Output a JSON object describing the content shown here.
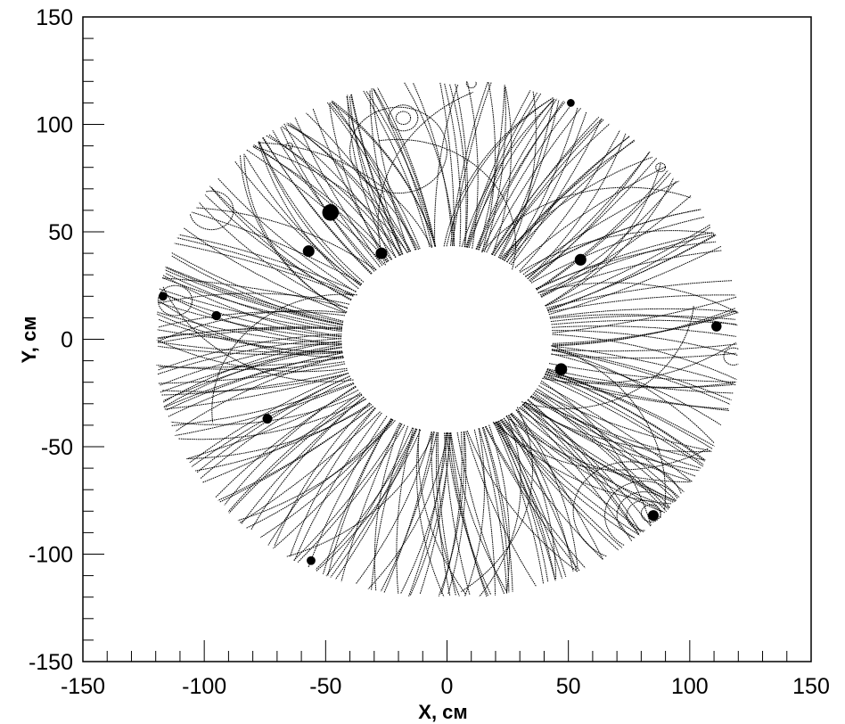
{
  "chart_data": {
    "type": "scatter",
    "title": "",
    "xlabel": "X, см",
    "ylabel": "Y, см",
    "xlim": [
      -150,
      150
    ],
    "ylim": [
      -150,
      150
    ],
    "x_major_ticks": [
      -150,
      -100,
      -50,
      0,
      50,
      100,
      150
    ],
    "y_major_ticks": [
      -150,
      -100,
      -50,
      0,
      50,
      100,
      150
    ],
    "x_tick_labels": [
      "-150",
      "-100",
      "-50",
      "0",
      "50",
      "100",
      "150"
    ],
    "y_tick_labels": [
      "-150",
      "-100",
      "-50",
      "0",
      "50",
      "100",
      "150"
    ],
    "grid": false,
    "legend": "none",
    "track_color": "#000000",
    "description": "track hits in a transverse detector plane",
    "region": {
      "inner_radius_cm": 42,
      "outer_radius_cm": 121,
      "outer_flat_limit_cm": 120
    },
    "blobs": [
      {
        "x": -57,
        "y": 41,
        "r": 2.4
      },
      {
        "x": -48,
        "y": 59,
        "r": 3.4
      },
      {
        "x": -27,
        "y": 40,
        "r": 2.4
      },
      {
        "x": -95,
        "y": 11,
        "r": 1.9
      },
      {
        "x": -74,
        "y": -37,
        "r": 2.0
      },
      {
        "x": -56,
        "y": -103,
        "r": 1.8
      },
      {
        "x": 55,
        "y": 37,
        "r": 2.4
      },
      {
        "x": 47,
        "y": -14,
        "r": 2.5
      },
      {
        "x": 111,
        "y": 6,
        "r": 2.1
      },
      {
        "x": 51,
        "y": 110,
        "r": 1.6
      },
      {
        "x": 85,
        "y": -82,
        "r": 2.2
      },
      {
        "x": -117,
        "y": 20,
        "r": 1.8
      }
    ],
    "loops": [
      {
        "cx": 81,
        "cy": -82,
        "r": 16
      },
      {
        "cx": 81,
        "cy": -82,
        "r": 11
      },
      {
        "cx": 81,
        "cy": -82,
        "r": 7
      },
      {
        "cx": 84,
        "cy": -81,
        "r": 4
      },
      {
        "cx": 75,
        "cy": -80,
        "r": 23
      },
      {
        "cx": -18,
        "cy": 103,
        "r": 6
      },
      {
        "cx": -18,
        "cy": 103,
        "r": 3
      },
      {
        "cx": -20,
        "cy": 88,
        "r": 20
      },
      {
        "cx": -112,
        "cy": 18,
        "r": 7
      },
      {
        "cx": -97,
        "cy": 60,
        "r": 9
      },
      {
        "cx": 118,
        "cy": -8,
        "r": 4
      },
      {
        "cx": 10,
        "cy": 119,
        "r": 2
      },
      {
        "cx": 88,
        "cy": 80,
        "r": 2
      },
      {
        "cx": -65,
        "cy": 90,
        "r": 1.4
      }
    ]
  }
}
